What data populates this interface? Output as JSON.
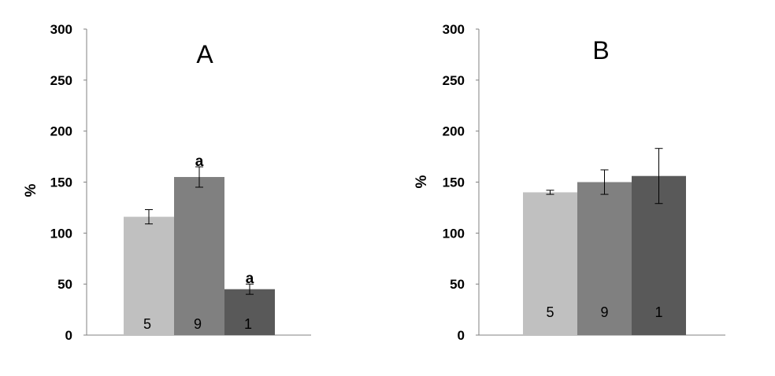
{
  "chart_data": [
    {
      "type": "bar",
      "title": "A",
      "ylabel": "%",
      "ylim": [
        0,
        300
      ],
      "yticks": [
        0,
        50,
        100,
        150,
        200,
        250,
        300
      ],
      "grid": false,
      "bars": [
        {
          "label": "5",
          "value": 116,
          "error": 7,
          "annotation": "",
          "color": "#c0c0c0"
        },
        {
          "label": "9",
          "value": 155,
          "error": 10,
          "annotation": "a",
          "color": "#808080"
        },
        {
          "label": "1",
          "value": 45,
          "error": 5,
          "annotation": "a",
          "color": "#595959"
        }
      ]
    },
    {
      "type": "bar",
      "title": "B",
      "ylabel": "%",
      "ylim": [
        0,
        300
      ],
      "yticks": [
        0,
        50,
        100,
        150,
        200,
        250,
        300
      ],
      "grid": false,
      "bars": [
        {
          "label": "5",
          "value": 140,
          "error": 2,
          "annotation": "",
          "color": "#c0c0c0"
        },
        {
          "label": "9",
          "value": 150,
          "error": 12,
          "annotation": "",
          "color": "#808080"
        },
        {
          "label": "1",
          "value": 156,
          "error": 27,
          "annotation": "",
          "color": "#595959"
        }
      ]
    }
  ]
}
